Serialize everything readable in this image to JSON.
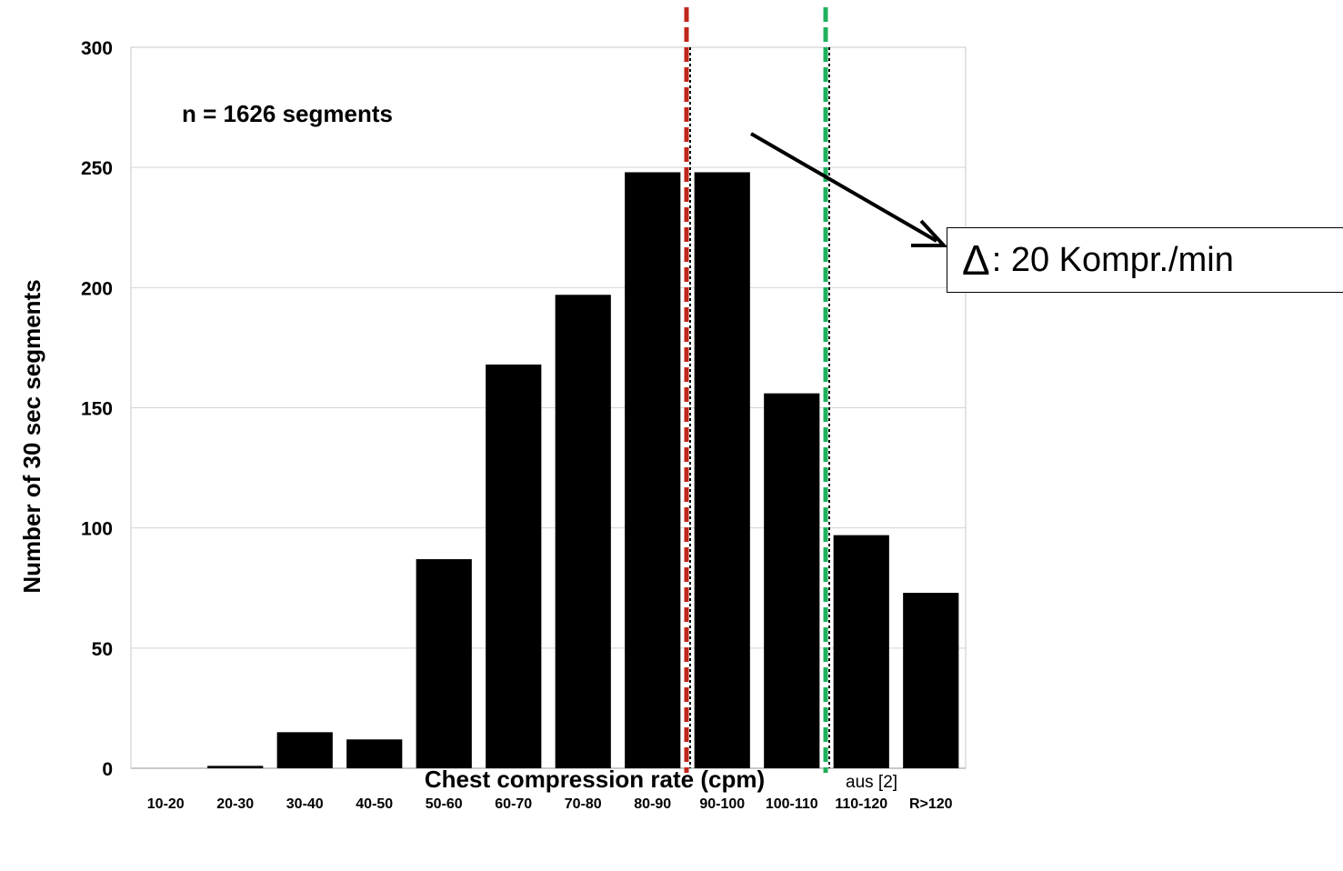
{
  "chart_data": {
    "type": "bar",
    "categories": [
      "10-20",
      "20-30",
      "30-40",
      "40-50",
      "50-60",
      "60-70",
      "70-80",
      "80-90",
      "90-100",
      "100-110",
      "110-120",
      "R>120"
    ],
    "values": [
      0,
      1,
      15,
      12,
      87,
      168,
      197,
      248,
      248,
      156,
      97,
      73
    ],
    "xlabel": "Chest compression rate (cpm)",
    "ylabel": "Number of 30 sec segments",
    "ylim": [
      0,
      300
    ],
    "yticks": [
      0,
      50,
      100,
      150,
      200,
      250,
      300
    ],
    "grid": true,
    "bar_color": "#000000",
    "annotation": "n = 1626 segments",
    "reference_lines": [
      {
        "x_boundary": "80-90|90-100",
        "color": "#c0261a",
        "style": "dashed"
      },
      {
        "x_boundary": "100-110|110-120",
        "color": "#1fb05c",
        "style": "dashed"
      }
    ],
    "callout": {
      "symbol": "Δ",
      "text": ": 20 Kompr./min"
    },
    "source_note": "aus [2]"
  }
}
